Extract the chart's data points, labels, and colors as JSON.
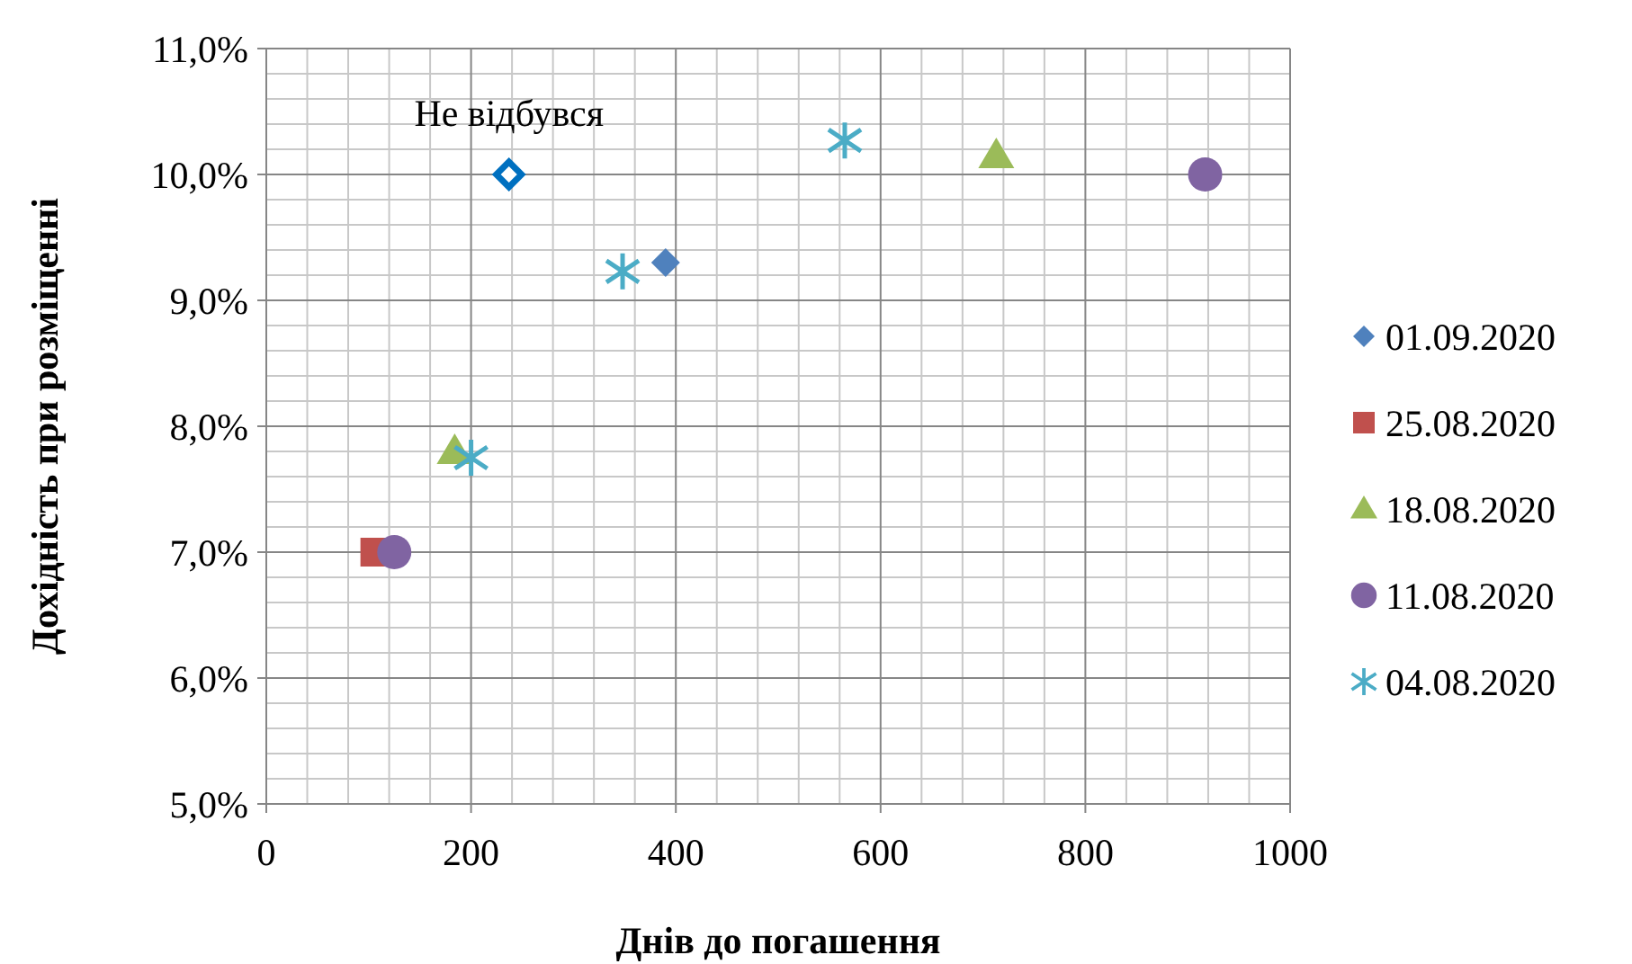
{
  "chart_data": {
    "type": "scatter",
    "xlabel": "Днів до погашення",
    "ylabel": "Дохідність при розміщенні",
    "xlim": [
      0,
      1000
    ],
    "xticks": [
      0,
      200,
      400,
      600,
      800,
      1000
    ],
    "ylim": [
      5,
      11
    ],
    "yticks": [
      {
        "value": 5,
        "label": "5,0%"
      },
      {
        "value": 6,
        "label": "6,0%"
      },
      {
        "value": 7,
        "label": "7,0%"
      },
      {
        "value": 8,
        "label": "8,0%"
      },
      {
        "value": 9,
        "label": "9,0%"
      },
      {
        "value": 10,
        "label": "10,0%"
      },
      {
        "value": 11,
        "label": "11,0%"
      }
    ],
    "grid": true,
    "legend": "right",
    "annotations": [
      {
        "text": "Не відбувся",
        "x": 237,
        "y": 10.0
      }
    ],
    "series": [
      {
        "name": "01.09.2020",
        "color": "#4f81bd",
        "marker": "diamond",
        "x": [
          390
        ],
        "values": [
          9.3
        ]
      },
      {
        "name": "25.08.2020",
        "color": "#c0504d",
        "marker": "square",
        "x": [
          106
        ],
        "values": [
          7.0
        ]
      },
      {
        "name": "18.08.2020",
        "color": "#9bbb59",
        "marker": "triangle",
        "x": [
          184,
          713
        ],
        "values": [
          7.8,
          10.15
        ]
      },
      {
        "name": "11.08.2020",
        "color": "#8064a2",
        "marker": "circle",
        "x": [
          125,
          917
        ],
        "values": [
          7.0,
          10.0
        ]
      },
      {
        "name": "04.08.2020",
        "color": "#4bacc6",
        "marker": "cross",
        "x": [
          200,
          348,
          565
        ],
        "values": [
          7.75,
          9.23,
          10.27
        ]
      },
      {
        "color": "#0070c0",
        "marker": "diamond",
        "x": [
          237
        ],
        "values": [
          10.0
        ]
      }
    ]
  }
}
